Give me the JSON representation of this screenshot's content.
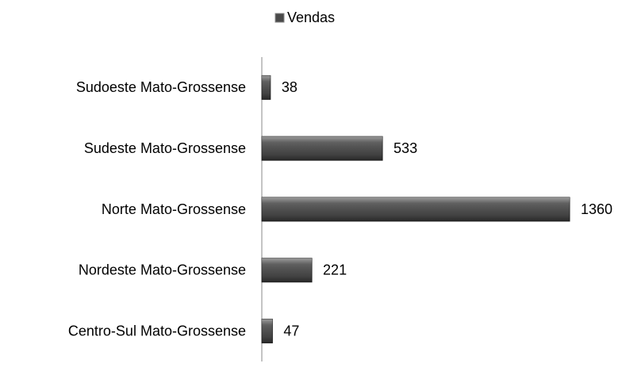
{
  "chart_data": {
    "type": "bar",
    "orientation": "horizontal",
    "categories": [
      "Sudoeste Mato-Grossense",
      "Sudeste Mato-Grossense",
      "Norte Mato-Grossense",
      "Nordeste Mato-Grossense",
      "Centro-Sul Mato-Grossense"
    ],
    "series": [
      {
        "name": "Vendas",
        "color": "#4a4a4a",
        "values": [
          38,
          533,
          1360,
          221,
          47
        ]
      }
    ],
    "legend": "top",
    "data_labels": true
  }
}
